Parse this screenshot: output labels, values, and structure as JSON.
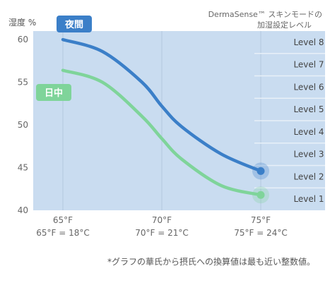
{
  "chart_data": {
    "type": "line",
    "ylabel": "湿度 %",
    "ylim": [
      40,
      61
    ],
    "xlim": [
      63.5,
      76.5
    ],
    "grid": true,
    "yticks": [
      "60",
      "55",
      "50",
      "45",
      "40"
    ],
    "xticks": [
      {
        "f": "65°F",
        "c": "65°F = 18°C"
      },
      {
        "f": "70°F",
        "c": "70°F = 21°C"
      },
      {
        "f": "75°F",
        "c": "75°F = 24°C"
      }
    ],
    "series": [
      {
        "name": "夜間",
        "color": "#3b7fc8",
        "x": [
          65,
          67,
          69,
          70,
          71,
          73,
          75
        ],
        "y": [
          60.0,
          58.6,
          55.0,
          52.2,
          49.8,
          46.6,
          44.6
        ]
      },
      {
        "name": "日中",
        "color": "#7fd49a",
        "x": [
          65,
          67,
          69,
          70,
          71,
          73,
          75
        ],
        "y": [
          56.4,
          55.0,
          51.0,
          48.4,
          46.0,
          42.9,
          41.8
        ]
      }
    ],
    "levels": [
      "Level 8",
      "Level 7",
      "Level 6",
      "Level 5",
      "Level 4",
      "Level 3",
      "Level 2",
      "Level 1"
    ],
    "legend_title": "DermaSense™ スキンモードの加湿設定レベル",
    "legend_title_lines": [
      "DermaSense™ スキンモードの",
      "加湿設定レベル"
    ],
    "footnote": "*グラフの華氏から摂氏への換算値は最も近い整数値。"
  }
}
